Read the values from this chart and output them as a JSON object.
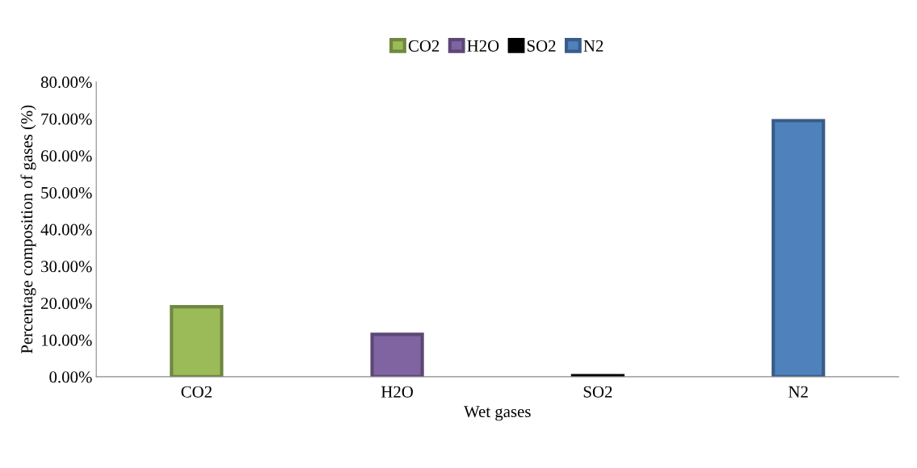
{
  "chart_data": {
    "type": "bar",
    "xlabel": "Wet gases",
    "ylabel": "Percentage composition of gases (%)",
    "categories": [
      "CO2",
      "H2O",
      "SO2",
      "N2"
    ],
    "series": [
      {
        "name": "CO2",
        "color": "#9bbb59",
        "values": [
          19.0,
          null,
          null,
          null
        ]
      },
      {
        "name": "H2O",
        "color": "#8064a2",
        "values": [
          null,
          11.5,
          null,
          null
        ]
      },
      {
        "name": "SO2",
        "color": "#000000",
        "values": [
          null,
          null,
          0.3,
          null
        ]
      },
      {
        "name": "N2",
        "color": "#4f81bd",
        "values": [
          null,
          null,
          null,
          69.5
        ]
      }
    ],
    "ylim": [
      0,
      80
    ],
    "yticks": [
      {
        "value": 0,
        "label": "0.00%"
      },
      {
        "value": 10,
        "label": "10.00%"
      },
      {
        "value": 20,
        "label": "20.00%"
      },
      {
        "value": 30,
        "label": "30.00%"
      },
      {
        "value": 40,
        "label": "40.00%"
      },
      {
        "value": 50,
        "label": "50.00%"
      },
      {
        "value": 60,
        "label": "60.00%"
      },
      {
        "value": 70,
        "label": "70.00%"
      },
      {
        "value": 80,
        "label": "80.00%"
      }
    ],
    "grid": false,
    "legend": "top"
  }
}
